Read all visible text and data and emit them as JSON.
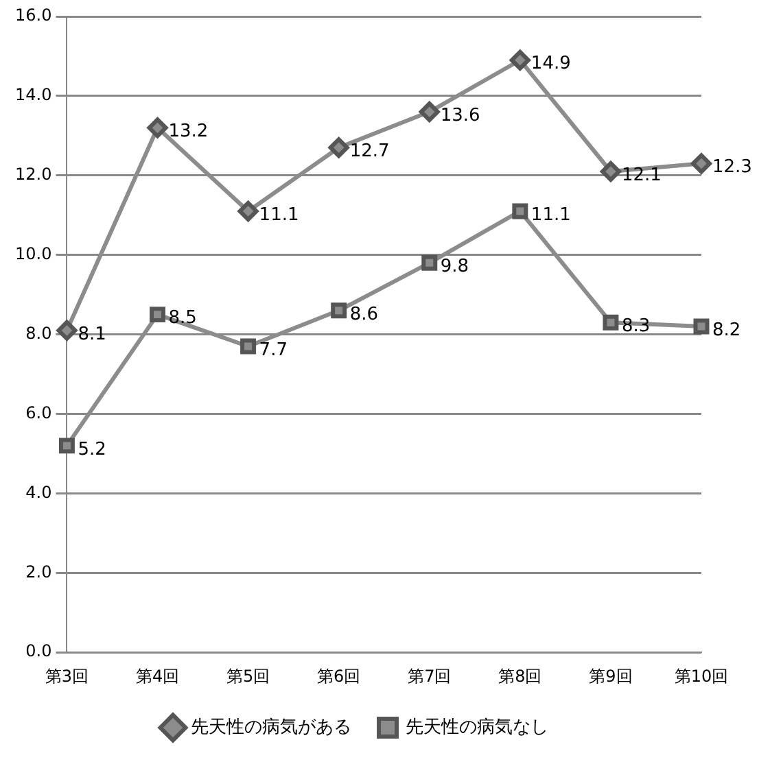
{
  "chart_data": {
    "type": "line",
    "categories": [
      "第3回",
      "第4回",
      "第5回",
      "第6回",
      "第7回",
      "第8回",
      "第9回",
      "第10回"
    ],
    "series": [
      {
        "name": "先天性の病気がある",
        "color": "#8c8c8c",
        "marker": "diamond",
        "values": [
          8.1,
          13.2,
          11.1,
          12.7,
          13.6,
          14.9,
          12.1,
          12.3
        ]
      },
      {
        "name": "先天性の病気なし",
        "color": "#8c8c8c",
        "marker": "square",
        "values": [
          5.2,
          8.5,
          7.7,
          8.6,
          9.8,
          11.1,
          8.3,
          8.2
        ]
      }
    ],
    "ylim": [
      0,
      16
    ],
    "yticks": [
      {
        "value": 0,
        "label": "0.0"
      },
      {
        "value": 2,
        "label": "2.0"
      },
      {
        "value": 4,
        "label": "4.0"
      },
      {
        "value": 6,
        "label": "6.0"
      },
      {
        "value": 8,
        "label": "8.0"
      },
      {
        "value": 10,
        "label": "10.0"
      },
      {
        "value": 12,
        "label": "12.0"
      },
      {
        "value": 14,
        "label": "14.0"
      },
      {
        "value": 16,
        "label": "16.0"
      }
    ],
    "grid": "y",
    "legend": "bottom",
    "data_labels": true,
    "line_style": "solid"
  }
}
